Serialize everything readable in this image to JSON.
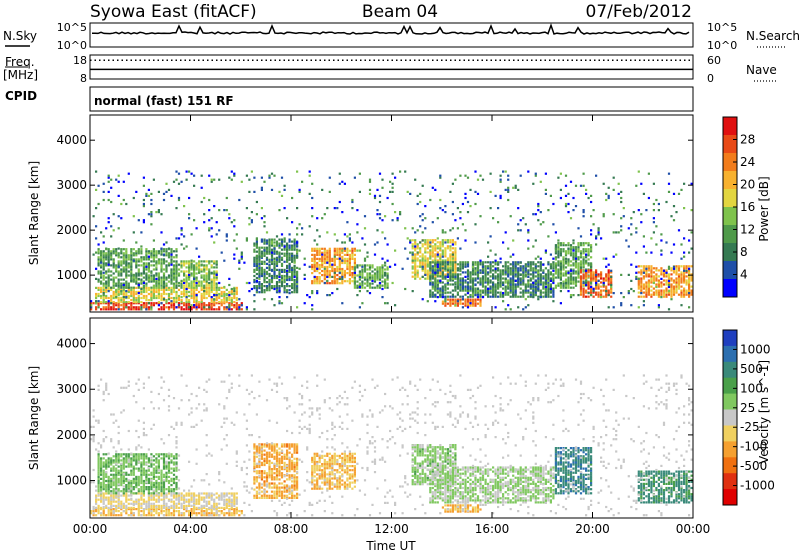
{
  "header": {
    "station": "Syowa East (fitACF)",
    "beam": "Beam 04",
    "date": "07/Feb/2012"
  },
  "left_labels": {
    "nsky": "N.Sky",
    "freq": "Freq.",
    "freq_unit": "[MHz]",
    "cpid": "CPID"
  },
  "right_labels": {
    "nsearch": "N.Search",
    "nave": "Nave"
  },
  "noise_panel": {
    "left_ticks": [
      "10^5",
      "10^0"
    ],
    "right_ticks": [
      "10^5",
      "10^0"
    ]
  },
  "freq_panel": {
    "left_ticks": [
      "18",
      "8"
    ],
    "right_ticks": [
      "60",
      "0"
    ],
    "freq_mhz": 12,
    "nave": 47
  },
  "cpid_text": "normal (fast) 151 RF",
  "colors": {
    "power": [
      "#0000ff",
      "#1f4fa8",
      "#357a52",
      "#4f9a4a",
      "#7fc34c",
      "#e3d641",
      "#f7b12f",
      "#f27c1b",
      "#e94a16",
      "#e01010"
    ],
    "velocity": [
      "#1f3fbf",
      "#2c6fb0",
      "#3a8a7a",
      "#4aa04a",
      "#80c860",
      "#c8c8c8",
      "#f0d060",
      "#f5a030",
      "#f07010",
      "#e03010",
      "#e00000"
    ]
  },
  "chart_data": [
    {
      "type": "heatmap",
      "name": "Power",
      "ylabel": "Slant Range [km]",
      "xlabel": "Time UT",
      "x_ticks": [
        "00:00",
        "04:00",
        "08:00",
        "12:00",
        "16:00",
        "20:00",
        "00:00"
      ],
      "xlim": [
        0,
        24
      ],
      "ylim": [
        180,
        4560
      ],
      "y_ticks": [
        1000,
        2000,
        3000,
        4000
      ],
      "colorbar": {
        "label": "Power [dB]",
        "range": [
          0,
          32
        ],
        "ticks": [
          4,
          8,
          12,
          16,
          20,
          24,
          28
        ]
      },
      "regions": [
        {
          "t0": 0.0,
          "t1": 6.0,
          "r0": 220,
          "r1": 380,
          "value": 28
        },
        {
          "t0": 0.2,
          "t1": 5.8,
          "r0": 380,
          "r1": 700,
          "value": 18
        },
        {
          "t0": 0.3,
          "t1": 3.5,
          "r0": 700,
          "r1": 1600,
          "value": 11
        },
        {
          "t0": 3.5,
          "t1": 5.0,
          "r0": 700,
          "r1": 1300,
          "value": 14
        },
        {
          "t0": 6.5,
          "t1": 8.2,
          "r0": 600,
          "r1": 1800,
          "value": 9
        },
        {
          "t0": 8.8,
          "t1": 10.5,
          "r0": 800,
          "r1": 1600,
          "value": 22
        },
        {
          "t0": 10.5,
          "t1": 11.8,
          "r0": 700,
          "r1": 1200,
          "value": 12
        },
        {
          "t0": 12.8,
          "t1": 14.5,
          "r0": 900,
          "r1": 1800,
          "value": 18
        },
        {
          "t0": 14.0,
          "t1": 15.5,
          "r0": 300,
          "r1": 450,
          "value": 24
        },
        {
          "t0": 13.5,
          "t1": 18.5,
          "r0": 500,
          "r1": 1300,
          "value": 9
        },
        {
          "t0": 18.5,
          "t1": 20.0,
          "r0": 700,
          "r1": 1700,
          "value": 12
        },
        {
          "t0": 19.5,
          "t1": 20.8,
          "r0": 500,
          "r1": 1100,
          "value": 26
        },
        {
          "t0": 21.8,
          "t1": 24.0,
          "r0": 500,
          "r1": 1200,
          "value": 22
        },
        {
          "t0": 0.0,
          "t1": 24.0,
          "r0": 220,
          "r1": 3300,
          "value": 7,
          "sparse": true
        }
      ]
    },
    {
      "type": "heatmap",
      "name": "Velocity",
      "ylabel": "Slant Range [km]",
      "xlabel": "Time UT",
      "x_ticks": [
        "00:00",
        "04:00",
        "08:00",
        "12:00",
        "16:00",
        "20:00",
        "00:00"
      ],
      "xlim": [
        0,
        24
      ],
      "ylim": [
        180,
        4560
      ],
      "y_ticks": [
        1000,
        2000,
        3000,
        4000
      ],
      "colorbar": {
        "label": "Velocity [m s^-1]",
        "range": [
          -1200,
          1200
        ],
        "ticks": [
          "1000",
          "500",
          "100",
          "25",
          "-25",
          "-100",
          "-500",
          "-1000"
        ]
      },
      "regions": [
        {
          "t0": 0.0,
          "t1": 6.0,
          "r0": 220,
          "r1": 380,
          "value": -300
        },
        {
          "t0": 0.2,
          "t1": 5.8,
          "r0": 380,
          "r1": 700,
          "value": -150
        },
        {
          "t0": 0.3,
          "t1": 3.5,
          "r0": 700,
          "r1": 1600,
          "value": 300
        },
        {
          "t0": 6.5,
          "t1": 8.2,
          "r0": 600,
          "r1": 1800,
          "value": -400
        },
        {
          "t0": 8.8,
          "t1": 10.5,
          "r0": 800,
          "r1": 1600,
          "value": -300
        },
        {
          "t0": 12.8,
          "t1": 14.5,
          "r0": 900,
          "r1": 1800,
          "value": 200
        },
        {
          "t0": 14.0,
          "t1": 15.5,
          "r0": 300,
          "r1": 450,
          "value": -400
        },
        {
          "t0": 13.5,
          "t1": 18.5,
          "r0": 500,
          "r1": 1300,
          "value": 150
        },
        {
          "t0": 18.5,
          "t1": 20.0,
          "r0": 700,
          "r1": 1700,
          "value": 700
        },
        {
          "t0": 21.8,
          "t1": 24.0,
          "r0": 500,
          "r1": 1200,
          "value": 600
        },
        {
          "t0": 0.0,
          "t1": 24.0,
          "r0": 220,
          "r1": 3300,
          "value": -50,
          "sparse": true
        }
      ]
    }
  ]
}
